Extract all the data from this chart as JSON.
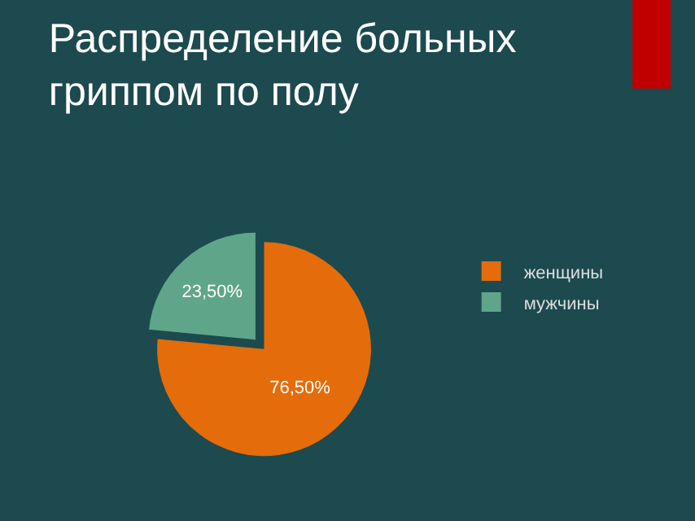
{
  "chart_data": {
    "type": "pie",
    "title": "Распределение больных\nгриппом по полу",
    "categories": [
      "женщины",
      "мужчины"
    ],
    "values": [
      76.5,
      23.5
    ],
    "colors": [
      "#e46c0a",
      "#5fa58a"
    ],
    "value_labels": [
      "76,50%",
      "23,50%"
    ],
    "legend": "right"
  }
}
